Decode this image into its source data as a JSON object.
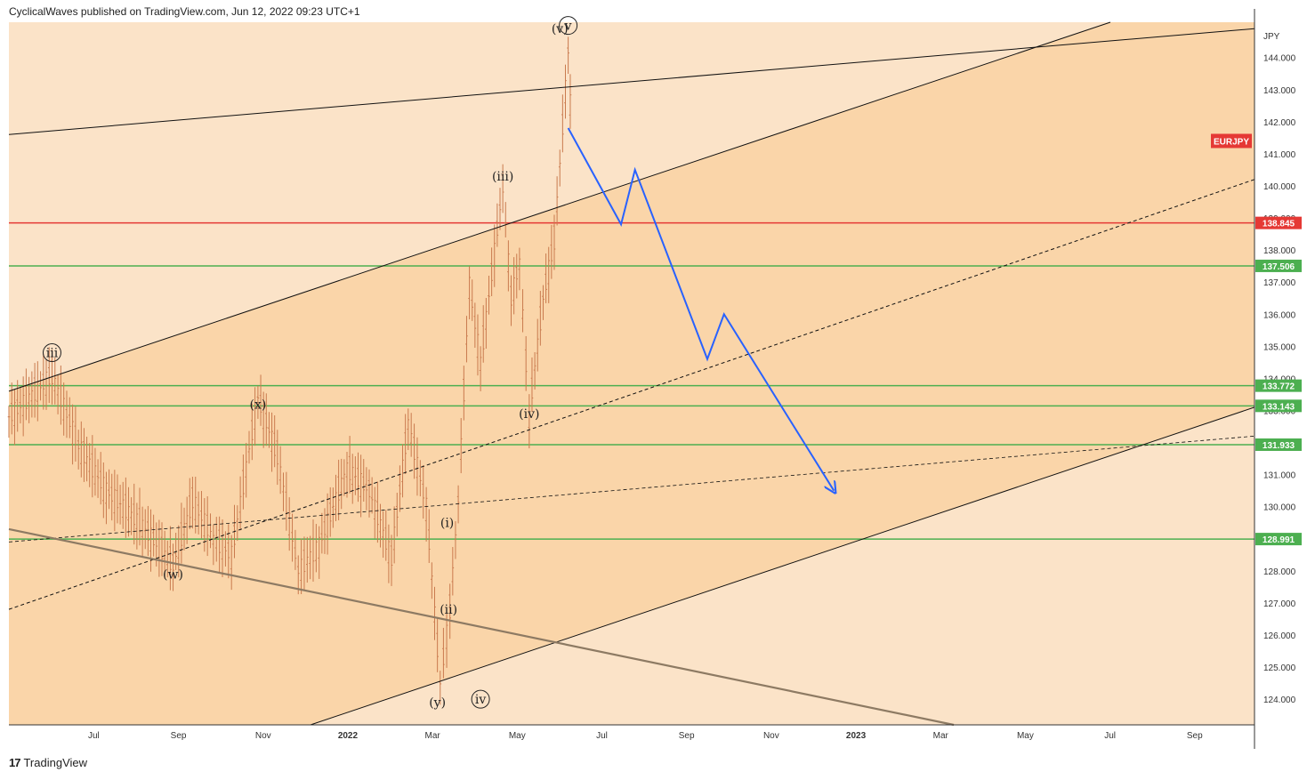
{
  "header": {
    "publisher_line": "CyclicalWaves published on TradingView.com, Jun 12, 2022 09:23 UTC+1"
  },
  "footer": {
    "brand": "TradingView",
    "logo_glyph": "17"
  },
  "colors": {
    "band_light": "#fbe3c8",
    "band_dark": "#f9d3a5",
    "candle": "#c97a4e",
    "red_line": "#e53935",
    "green_line": "#4caf50",
    "projection": "#2962ff",
    "trendline": "#111111",
    "brown_line": "#8d7a63"
  },
  "chart_data": {
    "type": "candlestick",
    "symbol": "EURJPY",
    "currency_label": "JPY",
    "y_range": [
      123.2,
      145.1
    ],
    "y_ticks": [
      "144.000",
      "143.000",
      "142.000",
      "141.000",
      "140.000",
      "139.000",
      "138.000",
      "137.000",
      "136.000",
      "135.000",
      "134.000",
      "133.000",
      "132.000",
      "131.000",
      "130.000",
      "129.000",
      "128.000",
      "127.000",
      "126.000",
      "125.000",
      "124.000"
    ],
    "x_ticks": [
      "Jul",
      "Sep",
      "Nov",
      "2022",
      "Mar",
      "May",
      "Jul",
      "Sep",
      "Nov",
      "2023",
      "Mar",
      "May",
      "Jul",
      "Sep"
    ],
    "horizontal_levels": [
      {
        "value": 138.845,
        "label": "138.845",
        "color": "red"
      },
      {
        "value": 137.506,
        "label": "137.506",
        "color": "green"
      },
      {
        "value": 133.772,
        "label": "133.772",
        "color": "green"
      },
      {
        "value": 133.143,
        "label": "133.143",
        "color": "green"
      },
      {
        "value": 131.933,
        "label": "131.933",
        "color": "green"
      },
      {
        "value": 128.991,
        "label": "128.991",
        "color": "green"
      }
    ],
    "symbol_tag": {
      "label": "EURJPY",
      "value": 141.4
    },
    "wave_labels": [
      {
        "text": "iii",
        "circled": true,
        "date": "2021-06-01",
        "value": 134.8
      },
      {
        "text": "(x)",
        "circled": false,
        "date": "2021-10-27",
        "value": 133.2
      },
      {
        "text": "(w)",
        "circled": false,
        "date": "2021-08-27",
        "value": 127.9
      },
      {
        "text": "(i)",
        "circled": false,
        "date": "2022-03-12",
        "value": 129.5
      },
      {
        "text": "(ii)",
        "circled": false,
        "date": "2022-03-13",
        "value": 126.8
      },
      {
        "text": "(y)",
        "circled": false,
        "date": "2022-03-05",
        "value": 123.9
      },
      {
        "text": "iv",
        "circled": true,
        "date": "2022-04-05",
        "value": 124.0
      },
      {
        "text": "(iii)",
        "circled": false,
        "date": "2022-04-21",
        "value": 140.3
      },
      {
        "text": "(iv)",
        "circled": false,
        "date": "2022-05-10",
        "value": 132.9
      },
      {
        "text": "(v)",
        "circled": false,
        "date": "2022-06-01",
        "value": 144.9
      },
      {
        "text": "v",
        "circled": true,
        "date": "2022-06-07",
        "value": 145.0
      }
    ],
    "projection_path": [
      {
        "date": "2022-06-07",
        "value": 141.8
      },
      {
        "date": "2022-07-15",
        "value": 138.8
      },
      {
        "date": "2022-07-25",
        "value": 140.5
      },
      {
        "date": "2022-09-15",
        "value": 134.6
      },
      {
        "date": "2022-09-27",
        "value": 136.0
      },
      {
        "date": "2022-12-15",
        "value": 130.5
      }
    ]
  }
}
